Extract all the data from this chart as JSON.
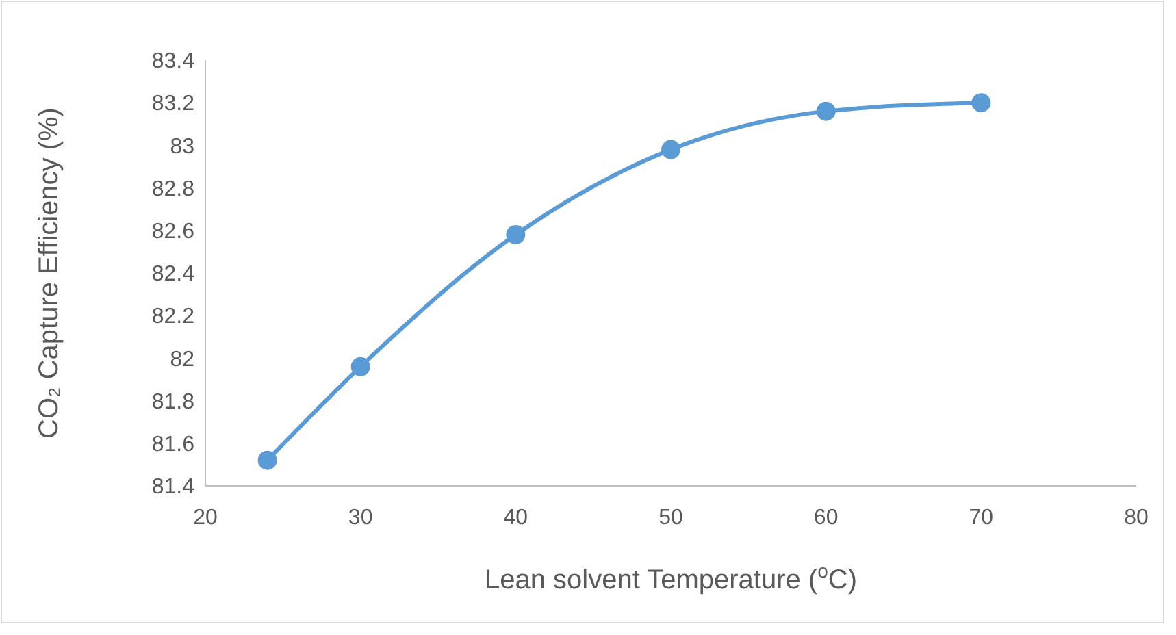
{
  "chart_data": {
    "type": "line",
    "xlabel": "Lean solvent Temperature ($^{o}$C)",
    "ylabel": "CO₂ Capture Efficiency (%)",
    "x": [
      24,
      30,
      40,
      50,
      60,
      70
    ],
    "series": [
      {
        "color": "#5b9bd5",
        "values": [
          81.52,
          81.96,
          82.58,
          82.98,
          83.16,
          83.2
        ]
      }
    ],
    "xlim": [
      20,
      80
    ],
    "xticks": [
      20,
      30,
      40,
      50,
      60,
      70,
      80
    ],
    "ylim": [
      81.4,
      83.4
    ],
    "yticks": [
      81.4,
      81.6,
      81.8,
      82,
      82.2,
      82.4,
      82.6,
      82.8,
      83,
      83.2,
      83.4
    ],
    "marker": "circle",
    "line_style": "solid",
    "grid": false
  }
}
